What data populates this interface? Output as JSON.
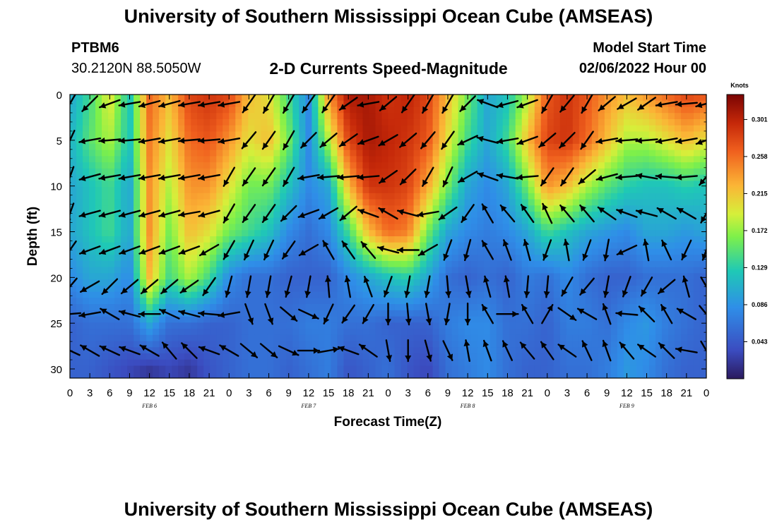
{
  "header": {
    "title": "University of Southern Mississippi Ocean Cube (AMSEAS)",
    "station": "PTBM6",
    "coords": "30.2120N  88.5050W",
    "subtitle": "2-D Currents Speed-Magnitude",
    "model_start_label": "Model Start Time",
    "model_start_value": "02/06/2022 Hour 00"
  },
  "footer": {
    "title": "University of Southern Mississippi Ocean Cube (AMSEAS)"
  },
  "chart_data": {
    "type": "heatmap",
    "title": "2-D Currents Speed-Magnitude",
    "xlabel": "Forecast Time(Z)",
    "ylabel": "Depth (ft)",
    "xlim": [
      0,
      96
    ],
    "ylim": [
      31,
      0
    ],
    "x_tick_labels": [
      "0",
      "3",
      "6",
      "9",
      "12",
      "15",
      "18",
      "21",
      "0",
      "3",
      "6",
      "9",
      "12",
      "15",
      "18",
      "21",
      "0",
      "3",
      "6",
      "9",
      "12",
      "15",
      "18",
      "21",
      "0",
      "3",
      "6",
      "9",
      "12",
      "15",
      "18",
      "21",
      "0"
    ],
    "date_labels": [
      {
        "text": "FEB 6",
        "hour": 12
      },
      {
        "text": "FEB 7",
        "hour": 36
      },
      {
        "text": "FEB 8",
        "hour": 60
      },
      {
        "text": "FEB 9",
        "hour": 84
      }
    ],
    "y_tick_labels": [
      "0",
      "5",
      "10",
      "15",
      "20",
      "25",
      "30"
    ],
    "y_ticks": [
      0,
      5,
      10,
      15,
      20,
      25,
      30
    ],
    "colorbar": {
      "label": "Knots",
      "ticks": [
        "0.301",
        "0.258",
        "0.215",
        "0.172",
        "0.129",
        "0.086",
        "0.043"
      ],
      "tick_values": [
        0.301,
        0.258,
        0.215,
        0.172,
        0.129,
        0.086,
        0.043
      ],
      "range": [
        0.0,
        0.33
      ]
    },
    "depths": [
      0,
      5,
      10,
      15,
      20,
      25,
      30
    ],
    "speed_rows_by_depth": [
      [
        0.1,
        0.14,
        0.2,
        0.12,
        0.26,
        0.22,
        0.28,
        0.29,
        0.28,
        0.22,
        0.2,
        0.14,
        0.08,
        0.24,
        0.31,
        0.31,
        0.29,
        0.3,
        0.28,
        0.22,
        0.16,
        0.1,
        0.12,
        0.18,
        0.27,
        0.29,
        0.27,
        0.24,
        0.22,
        0.24,
        0.26,
        0.28,
        0.27
      ],
      [
        0.11,
        0.15,
        0.18,
        0.12,
        0.25,
        0.2,
        0.26,
        0.27,
        0.24,
        0.2,
        0.22,
        0.16,
        0.08,
        0.18,
        0.28,
        0.31,
        0.3,
        0.29,
        0.27,
        0.2,
        0.14,
        0.1,
        0.14,
        0.22,
        0.28,
        0.29,
        0.26,
        0.22,
        0.18,
        0.18,
        0.2,
        0.22,
        0.2
      ],
      [
        0.1,
        0.12,
        0.14,
        0.1,
        0.24,
        0.18,
        0.24,
        0.24,
        0.2,
        0.16,
        0.16,
        0.12,
        0.08,
        0.1,
        0.22,
        0.29,
        0.29,
        0.28,
        0.23,
        0.16,
        0.1,
        0.08,
        0.1,
        0.16,
        0.24,
        0.22,
        0.18,
        0.15,
        0.13,
        0.12,
        0.12,
        0.13,
        0.12
      ],
      [
        0.1,
        0.12,
        0.14,
        0.1,
        0.24,
        0.16,
        0.22,
        0.2,
        0.16,
        0.14,
        0.12,
        0.08,
        0.06,
        0.08,
        0.14,
        0.22,
        0.26,
        0.25,
        0.16,
        0.1,
        0.08,
        0.07,
        0.08,
        0.1,
        0.14,
        0.12,
        0.1,
        0.09,
        0.08,
        0.1,
        0.1,
        0.09,
        0.1
      ],
      [
        0.08,
        0.1,
        0.1,
        0.08,
        0.22,
        0.14,
        0.18,
        0.14,
        0.08,
        0.06,
        0.06,
        0.05,
        0.05,
        0.05,
        0.08,
        0.1,
        0.12,
        0.13,
        0.1,
        0.06,
        0.05,
        0.06,
        0.05,
        0.07,
        0.06,
        0.08,
        0.06,
        0.05,
        0.05,
        0.06,
        0.06,
        0.06,
        0.05
      ],
      [
        0.05,
        0.06,
        0.06,
        0.06,
        0.1,
        0.06,
        0.06,
        0.05,
        0.05,
        0.06,
        0.06,
        0.06,
        0.07,
        0.07,
        0.06,
        0.06,
        0.05,
        0.05,
        0.05,
        0.07,
        0.08,
        0.08,
        0.06,
        0.06,
        0.05,
        0.07,
        0.07,
        0.06,
        0.08,
        0.09,
        0.07,
        0.06,
        0.05
      ],
      [
        0.05,
        0.05,
        0.04,
        0.03,
        0.02,
        0.03,
        0.02,
        0.04,
        0.05,
        0.06,
        0.06,
        0.05,
        0.06,
        0.07,
        0.04,
        0.05,
        0.06,
        0.04,
        0.03,
        0.06,
        0.07,
        0.08,
        0.06,
        0.05,
        0.05,
        0.06,
        0.06,
        0.07,
        0.09,
        0.08,
        0.06,
        0.05,
        0.05
      ]
    ],
    "vector_hours": [
      0,
      3,
      6,
      9,
      12,
      15,
      18,
      21,
      24,
      27,
      30,
      33,
      36,
      39,
      42,
      45,
      48,
      51,
      54,
      57,
      60,
      63,
      66,
      69,
      72,
      75,
      78,
      81,
      84,
      87,
      90,
      93,
      96
    ],
    "vector_depths": [
      1,
      5,
      9,
      13,
      17,
      21,
      24,
      28
    ],
    "vector_directions_deg": [
      [
        210,
        225,
        250,
        260,
        255,
        255,
        260,
        260,
        260,
        215,
        210,
        210,
        215,
        215,
        235,
        260,
        230,
        215,
        210,
        210,
        225,
        290,
        255,
        250,
        210,
        220,
        210,
        230,
        240,
        235,
        260,
        265,
        255
      ],
      [
        205,
        260,
        265,
        265,
        260,
        260,
        265,
        265,
        260,
        220,
        215,
        210,
        225,
        230,
        235,
        250,
        240,
        230,
        220,
        215,
        245,
        285,
        260,
        250,
        230,
        225,
        215,
        260,
        265,
        265,
        260,
        260,
        250
      ],
      [
        200,
        255,
        260,
        260,
        260,
        260,
        260,
        260,
        210,
        215,
        215,
        210,
        260,
        265,
        265,
        265,
        235,
        225,
        210,
        205,
        240,
        290,
        280,
        265,
        215,
        215,
        230,
        255,
        265,
        280,
        275,
        265,
        220
      ],
      [
        200,
        255,
        255,
        255,
        255,
        255,
        260,
        255,
        210,
        215,
        215,
        225,
        250,
        240,
        230,
        290,
        300,
        285,
        260,
        235,
        215,
        330,
        320,
        325,
        335,
        320,
        320,
        305,
        290,
        285,
        300,
        300,
        210
      ],
      [
        215,
        250,
        250,
        250,
        250,
        250,
        250,
        240,
        210,
        205,
        205,
        215,
        240,
        330,
        325,
        320,
        285,
        270,
        240,
        200,
        195,
        330,
        340,
        345,
        200,
        350,
        200,
        190,
        245,
        350,
        335,
        205,
        200
      ],
      [
        220,
        240,
        225,
        230,
        230,
        230,
        235,
        215,
        195,
        190,
        190,
        195,
        190,
        355,
        350,
        340,
        200,
        190,
        190,
        175,
        170,
        345,
        350,
        185,
        185,
        210,
        220,
        190,
        200,
        210,
        230,
        345,
        150
      ],
      [
        265,
        260,
        300,
        285,
        270,
        295,
        285,
        275,
        260,
        160,
        160,
        130,
        115,
        205,
        215,
        210,
        180,
        175,
        170,
        190,
        180,
        330,
        90,
        330,
        30,
        125,
        300,
        340,
        275,
        315,
        330,
        300,
        140
      ],
      [
        295,
        300,
        295,
        290,
        300,
        320,
        315,
        290,
        300,
        130,
        130,
        115,
        90,
        80,
        290,
        305,
        170,
        180,
        165,
        155,
        350,
        340,
        335,
        320,
        325,
        305,
        335,
        340,
        320,
        305,
        315,
        280,
        150
      ]
    ]
  }
}
